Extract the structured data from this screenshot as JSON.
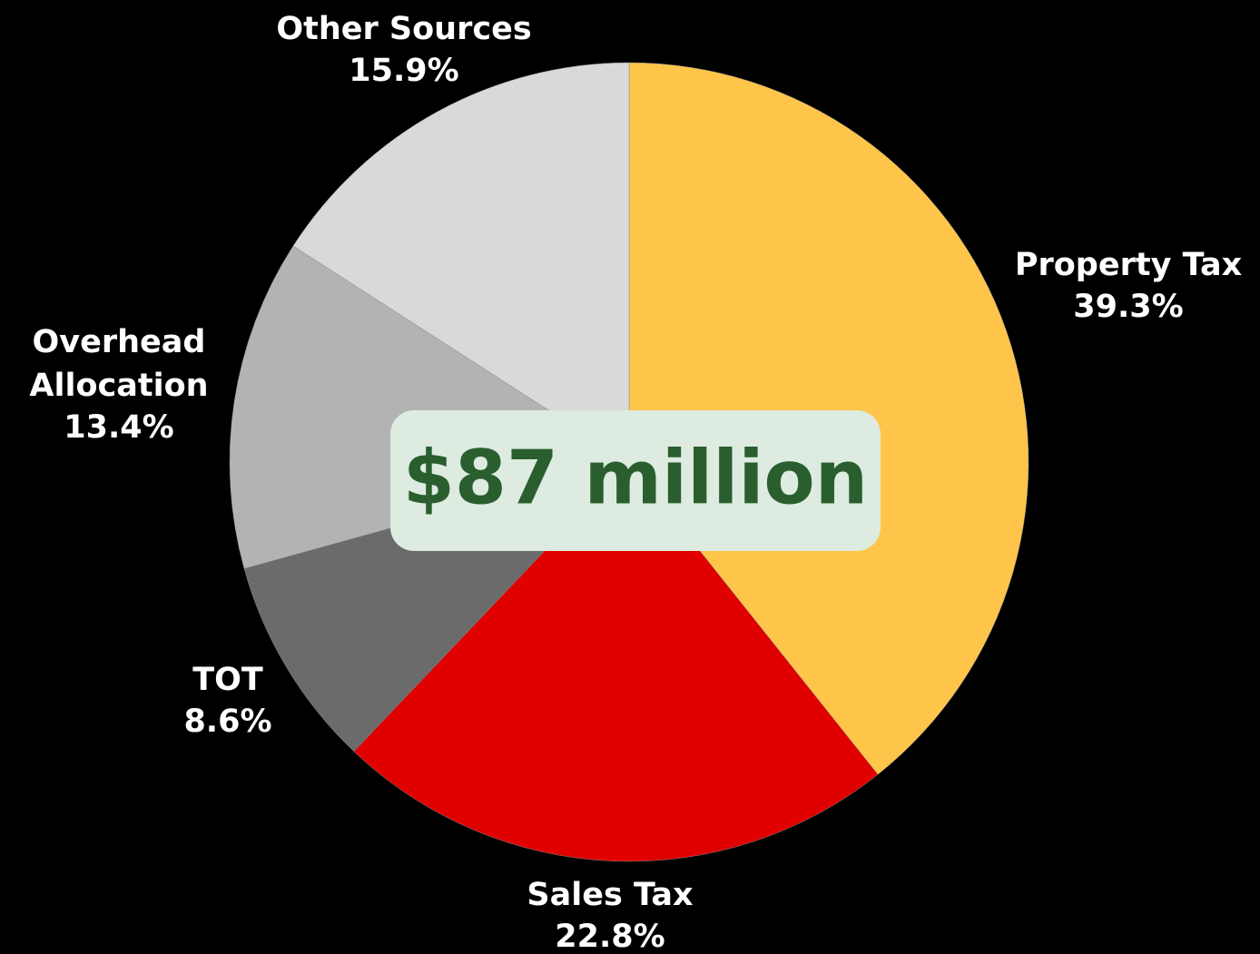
{
  "chart_data": {
    "type": "pie",
    "annotation": "$87 million",
    "categories": [
      "Property Tax",
      "Sales Tax",
      "TOT",
      "Overhead Allocation",
      "Other Sources"
    ],
    "values": [
      39.3,
      22.8,
      8.6,
      13.4,
      15.9
    ],
    "value_labels": [
      "39.3%",
      "22.8%",
      "8.6%",
      "13.4%",
      "15.9%"
    ],
    "colors": [
      "#FFC54A",
      "#E00000",
      "#6B6B6B",
      "#B3B3B3",
      "#D9D9D9"
    ]
  }
}
